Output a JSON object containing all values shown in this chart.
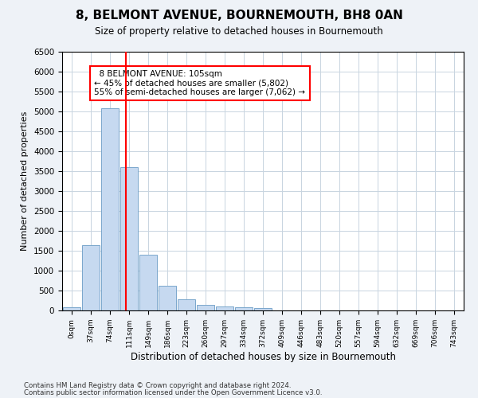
{
  "title": "8, BELMONT AVENUE, BOURNEMOUTH, BH8 0AN",
  "subtitle": "Size of property relative to detached houses in Bournemouth",
  "xlabel": "Distribution of detached houses by size in Bournemouth",
  "ylabel": "Number of detached properties",
  "footer_line1": "Contains HM Land Registry data © Crown copyright and database right 2024.",
  "footer_line2": "Contains public sector information licensed under the Open Government Licence v3.0.",
  "bin_labels": [
    "0sqm",
    "37sqm",
    "74sqm",
    "111sqm",
    "149sqm",
    "186sqm",
    "223sqm",
    "260sqm",
    "297sqm",
    "334sqm",
    "372sqm",
    "409sqm",
    "446sqm",
    "483sqm",
    "520sqm",
    "557sqm",
    "594sqm",
    "632sqm",
    "669sqm",
    "706sqm",
    "743sqm"
  ],
  "bar_values": [
    75,
    1650,
    5075,
    3600,
    1410,
    620,
    290,
    145,
    110,
    85,
    65,
    0,
    0,
    0,
    0,
    0,
    0,
    0,
    0,
    0,
    0
  ],
  "bar_color": "#c6d9f0",
  "bar_edge_color": "#7aa6cc",
  "ylim": [
    0,
    6500
  ],
  "yticks": [
    0,
    500,
    1000,
    1500,
    2000,
    2500,
    3000,
    3500,
    4000,
    4500,
    5000,
    5500,
    6000,
    6500
  ],
  "property_label": "8 BELMONT AVENUE: 105sqm",
  "pct_smaller": 45,
  "num_smaller": 5802,
  "pct_larger_semi": 55,
  "num_larger_semi": 7062,
  "vline_x": 2.82,
  "background_color": "#eef2f7",
  "plot_bg_color": "#ffffff",
  "grid_color": "#c8d4e0"
}
